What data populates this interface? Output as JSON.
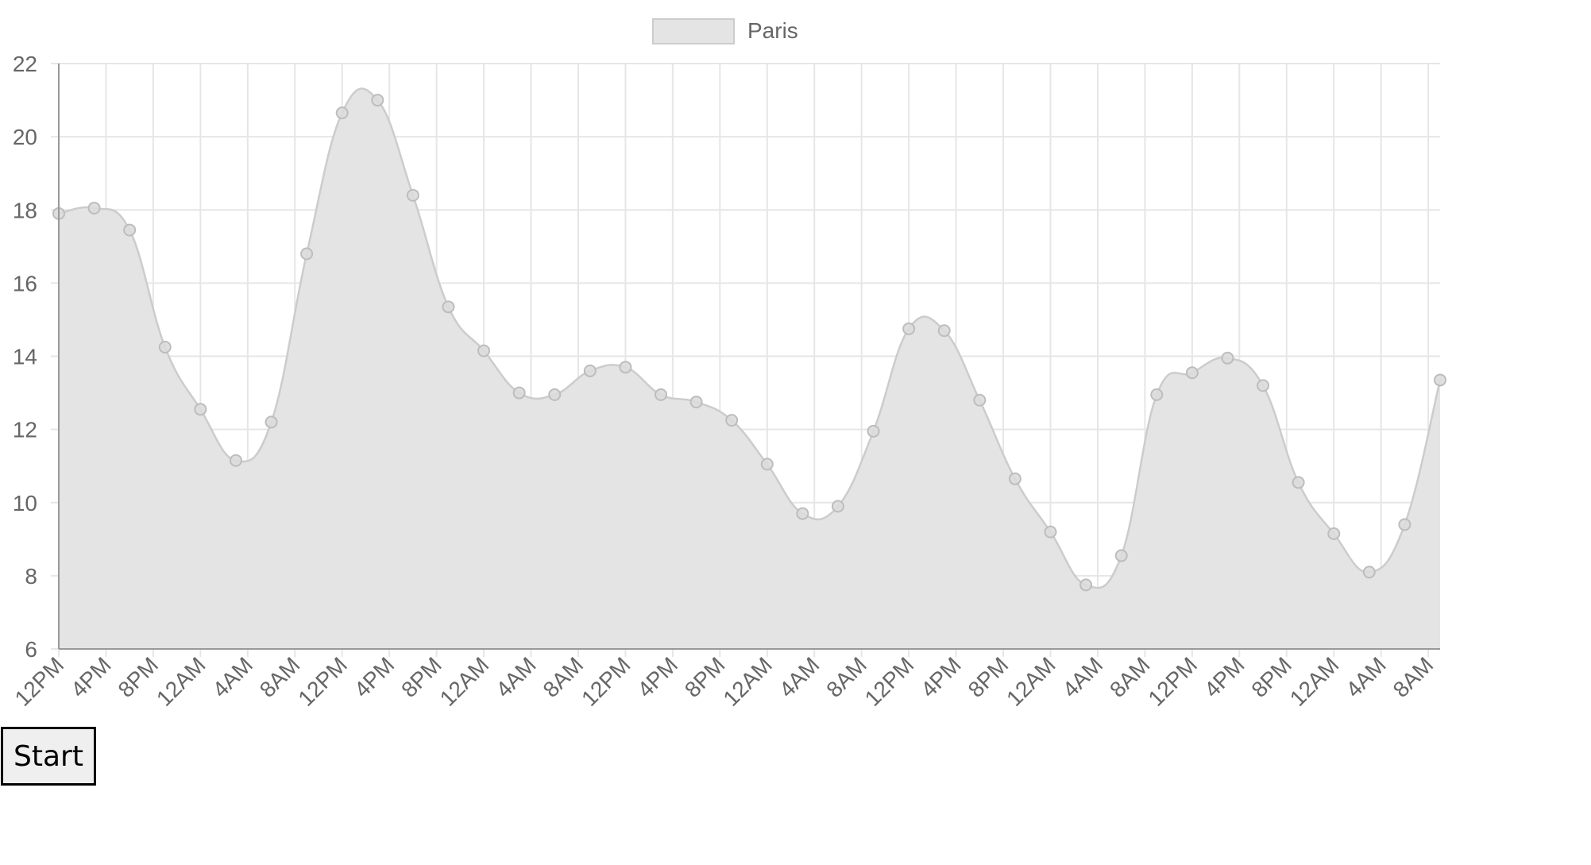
{
  "controls": {
    "start_label": "Start"
  },
  "chart_data": {
    "type": "area",
    "title": "",
    "xlabel": "",
    "ylabel": "",
    "ylim": [
      6,
      22
    ],
    "y_ticks": [
      "6",
      "8",
      "10",
      "12",
      "14",
      "16",
      "18",
      "20",
      "22"
    ],
    "grid": true,
    "legend_position": "top",
    "curve": "smooth",
    "x_tick_labels": [
      "12PM",
      "4PM",
      "8PM",
      "12AM",
      "4AM",
      "8AM",
      "12PM",
      "4PM",
      "8PM",
      "12AM",
      "4AM",
      "8AM",
      "12PM",
      "4PM",
      "8PM",
      "12AM",
      "4AM",
      "8AM",
      "12PM",
      "4PM",
      "8PM",
      "12AM",
      "4AM",
      "8AM",
      "12PM",
      "4PM",
      "8PM",
      "12AM",
      "4AM",
      "8AM"
    ],
    "x_tick_interval_hours": 4,
    "point_interval_hours": 3,
    "colors": {
      "fill": "#e4e4e4",
      "line": "#cccccc",
      "point_fill": "#dcdcdc",
      "point_stroke": "#bdbdbd",
      "grid": "#e6e6e6",
      "axis": "#999999",
      "text": "#666666"
    },
    "series": [
      {
        "name": "Paris",
        "values": [
          17.9,
          18.05,
          17.45,
          14.25,
          12.55,
          11.15,
          12.2,
          16.8,
          20.65,
          21.0,
          18.4,
          15.35,
          14.15,
          13.0,
          12.95,
          13.6,
          13.7,
          12.95,
          12.75,
          12.25,
          11.05,
          9.7,
          9.9,
          11.95,
          14.75,
          14.7,
          12.8,
          10.65,
          9.2,
          7.75,
          8.55,
          12.95,
          13.55,
          13.95,
          13.2,
          10.55,
          9.15,
          8.1,
          9.4,
          13.35
        ]
      }
    ]
  }
}
